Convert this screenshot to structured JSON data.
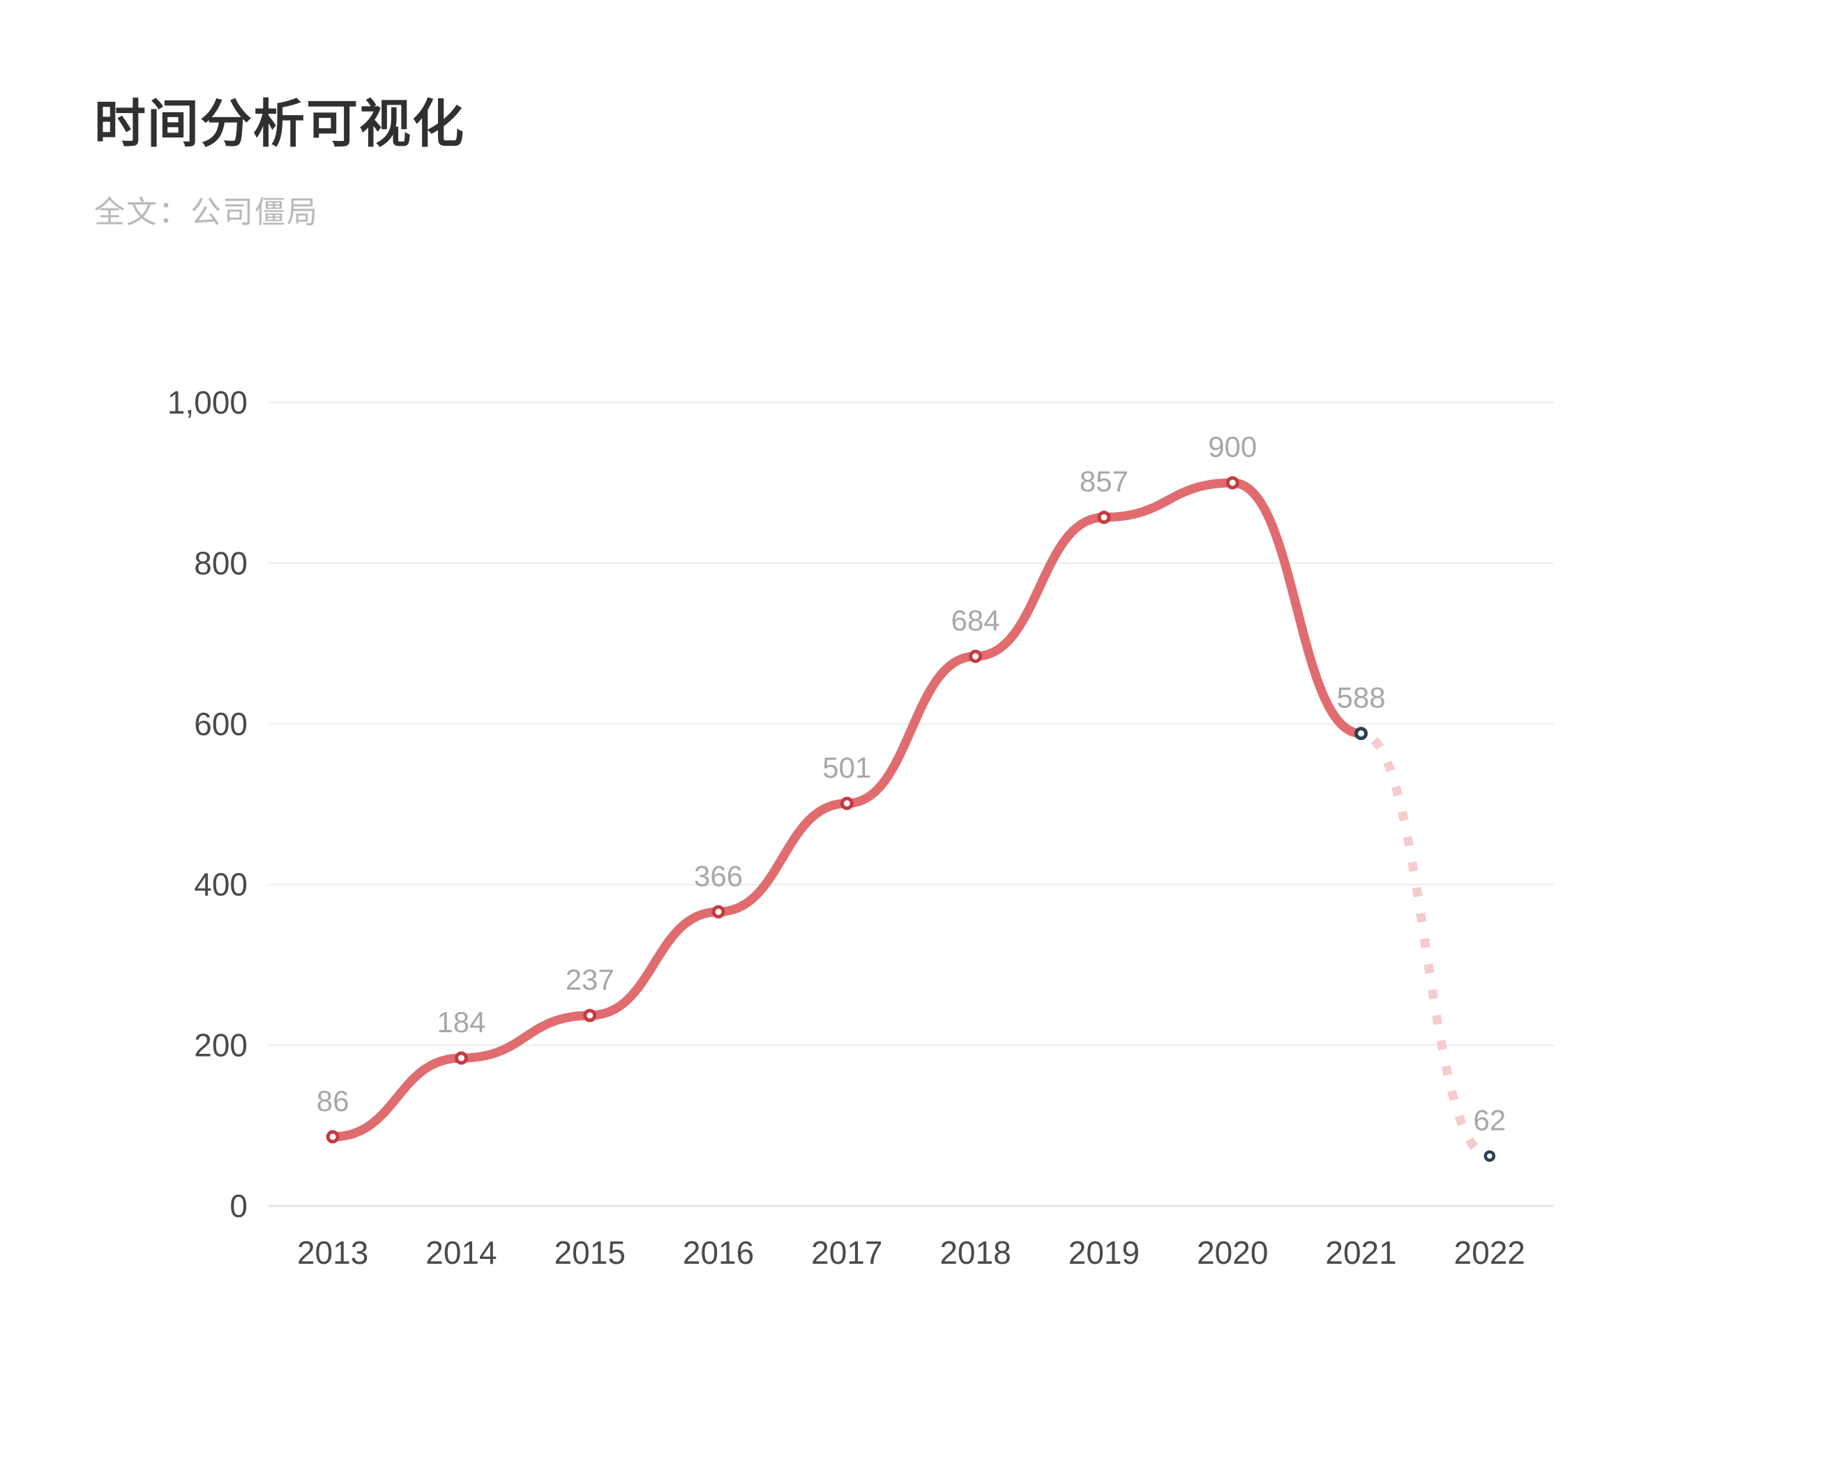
{
  "header": {
    "title": "时间分析可视化",
    "subtitle": "全文：公司僵局"
  },
  "chart_data": {
    "type": "line",
    "title": "时间分析可视化",
    "subtitle": "全文：公司僵局",
    "categories": [
      "2013",
      "2014",
      "2015",
      "2016",
      "2017",
      "2018",
      "2019",
      "2020",
      "2021",
      "2022"
    ],
    "series": [
      {
        "name": "全文：公司僵局",
        "values": [
          86,
          184,
          237,
          366,
          501,
          684,
          857,
          900,
          588,
          62
        ]
      }
    ],
    "value_labels": [
      "86",
      "184",
      "237",
      "366",
      "501",
      "684",
      "857",
      "900",
      "588",
      "62"
    ],
    "xlabel": "",
    "ylabel": "",
    "ylim": [
      0,
      1000
    ],
    "yticks": [
      0,
      200,
      400,
      600,
      800,
      1000
    ],
    "ytick_labels": [
      "0",
      "200",
      "400",
      "600",
      "800",
      "1,000"
    ],
    "grid": true,
    "legend": false,
    "smooth": true,
    "dashed_from_index": 8,
    "point_styles": [
      {
        "color": "#c53b40",
        "size": "normal"
      },
      {
        "color": "#c53b40",
        "size": "normal"
      },
      {
        "color": "#c53b40",
        "size": "normal"
      },
      {
        "color": "#c53b40",
        "size": "normal"
      },
      {
        "color": "#c53b40",
        "size": "normal"
      },
      {
        "color": "#c53b40",
        "size": "normal"
      },
      {
        "color": "#c53b40",
        "size": "normal"
      },
      {
        "color": "#c53b40",
        "size": "normal"
      },
      {
        "color": "#2e4154",
        "size": "normal"
      },
      {
        "color": "#2e4154",
        "size": "small"
      }
    ],
    "colors": {
      "line_solid": "#e06c70",
      "line_dashed": "#f6cbcd",
      "marker_fill": "#ffffff",
      "marker_red": "#c53b40",
      "marker_navy": "#2e4154",
      "value_label": "#a7a7a7",
      "axis_label": "#4a4a4a",
      "gridline": "#f0f0f1",
      "zero_line": "#e6e6e8",
      "title": "#303030",
      "subtitle": "#b9b9b9"
    }
  }
}
